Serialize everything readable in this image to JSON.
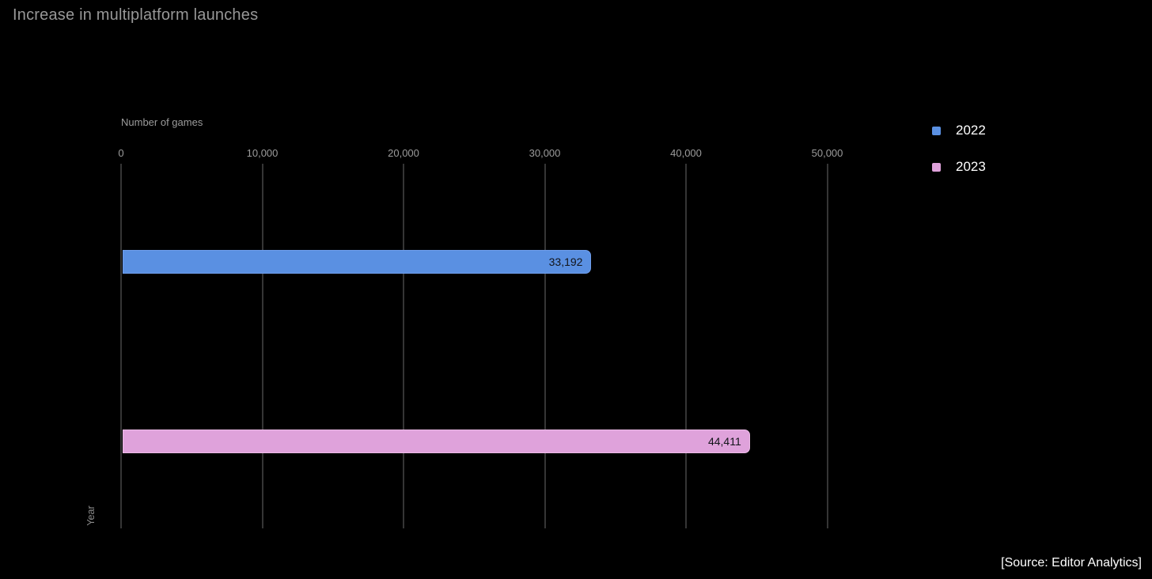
{
  "chart_data": {
    "type": "bar",
    "orientation": "horizontal",
    "title": "Increase in multiplatform launches",
    "xlabel": "Number of games",
    "ylabel": "Year",
    "categories": [
      "2022",
      "2023"
    ],
    "values": [
      33192,
      44411
    ],
    "value_labels": [
      "33,192",
      "44,411"
    ],
    "xlim": [
      0,
      50000
    ],
    "xticks": [
      0,
      10000,
      20000,
      30000,
      40000,
      50000
    ],
    "xtick_labels": [
      "0",
      "10,000",
      "20,000",
      "30,000",
      "40,000",
      "50,000"
    ],
    "legend": [
      {
        "label": "2022",
        "color": "#5a90e2",
        "edge_color": "#6f9dea"
      },
      {
        "label": "2023",
        "color": "#dfa2db",
        "edge_color": "#ecbce7"
      }
    ],
    "legend_position": "top-right",
    "grid": "vertical",
    "background": "#000000",
    "source": "[Source: Editor Analytics]"
  }
}
